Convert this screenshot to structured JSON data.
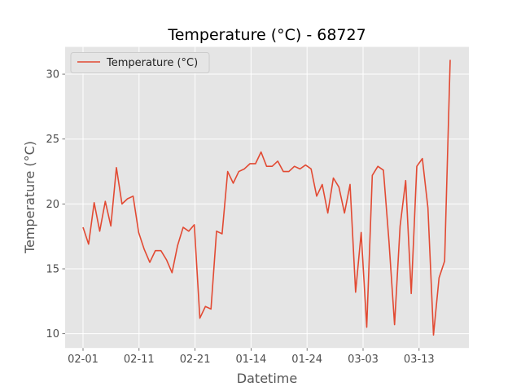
{
  "chart_data": {
    "type": "line",
    "title": "Temperature (°C) - 68727",
    "xlabel": "Datetime",
    "ylabel": "Temperature (°C)",
    "x_tick_labels": [
      "02-01",
      "02-11",
      "02-21",
      "01-14",
      "01-24",
      "03-03",
      "03-13"
    ],
    "y_ticks": [
      10,
      15,
      20,
      25,
      30
    ],
    "ylim": [
      8.9,
      32.1
    ],
    "grid": true,
    "legend_position": "top-left",
    "series": [
      {
        "name": "Temperature (°C)",
        "color": "#E24A33",
        "values": [
          18.2,
          16.9,
          20.1,
          17.9,
          20.2,
          18.3,
          22.8,
          20.0,
          20.4,
          20.6,
          17.8,
          16.5,
          15.5,
          16.4,
          16.4,
          15.7,
          14.7,
          16.8,
          18.2,
          17.9,
          18.4,
          11.2,
          12.1,
          11.9,
          17.9,
          17.7,
          22.5,
          21.6,
          22.5,
          22.7,
          23.1,
          23.1,
          24.0,
          22.9,
          22.9,
          23.3,
          22.5,
          22.5,
          22.9,
          22.7,
          23.0,
          22.7,
          20.6,
          21.5,
          19.3,
          22.0,
          21.3,
          19.3,
          21.5,
          13.2,
          17.8,
          10.5,
          22.2,
          22.9,
          22.6,
          17.1,
          10.7,
          18.3,
          21.8,
          13.1,
          22.9,
          23.5,
          19.7,
          9.9,
          14.3,
          15.6,
          31.1
        ]
      }
    ]
  }
}
